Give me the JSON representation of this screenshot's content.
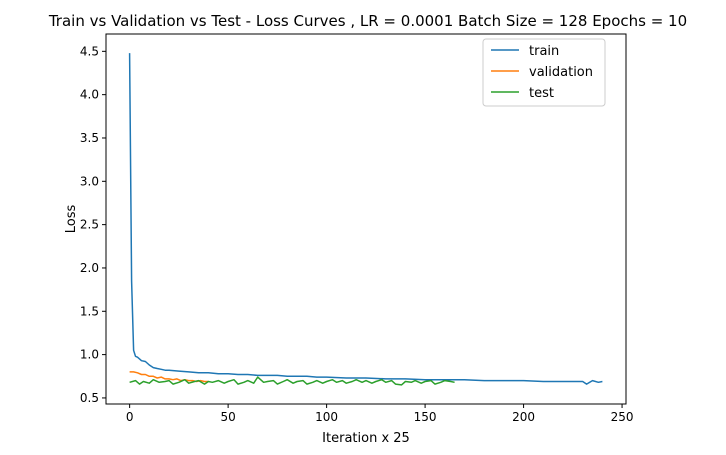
{
  "chart_data": {
    "type": "line",
    "title": "Train vs Validation vs Test - Loss Curves , LR = 0.0001 Batch Size = 128 Epochs = 10",
    "xlabel": "Iteration x 25",
    "ylabel": "Loss",
    "xlim": [
      -12,
      252
    ],
    "ylim": [
      0.43,
      4.7
    ],
    "xticks": [
      0,
      50,
      100,
      150,
      200,
      250
    ],
    "yticks": [
      0.5,
      1.0,
      1.5,
      2.0,
      2.5,
      3.0,
      3.5,
      4.0,
      4.5
    ],
    "xtick_labels": [
      "0",
      "50",
      "100",
      "150",
      "200",
      "250"
    ],
    "ytick_labels": [
      "0.5",
      "1.0",
      "1.5",
      "2.0",
      "2.5",
      "3.0",
      "3.5",
      "4.0",
      "4.5"
    ],
    "grid": false,
    "legend_position": "top-right",
    "series": [
      {
        "name": "train",
        "color": "#1f77b4",
        "x": [
          0,
          1,
          2,
          3,
          4,
          5,
          6,
          8,
          10,
          12,
          14,
          16,
          18,
          20,
          25,
          30,
          35,
          40,
          45,
          50,
          55,
          60,
          65,
          70,
          75,
          80,
          85,
          90,
          95,
          100,
          110,
          120,
          130,
          140,
          150,
          160,
          170,
          180,
          190,
          200,
          210,
          220,
          230,
          232,
          235,
          238,
          240
        ],
        "y": [
          4.48,
          1.85,
          1.05,
          0.98,
          0.97,
          0.95,
          0.93,
          0.92,
          0.88,
          0.85,
          0.84,
          0.83,
          0.82,
          0.82,
          0.81,
          0.8,
          0.79,
          0.79,
          0.78,
          0.78,
          0.77,
          0.77,
          0.76,
          0.76,
          0.76,
          0.75,
          0.75,
          0.75,
          0.74,
          0.74,
          0.73,
          0.73,
          0.72,
          0.72,
          0.71,
          0.71,
          0.71,
          0.7,
          0.7,
          0.7,
          0.69,
          0.69,
          0.69,
          0.66,
          0.7,
          0.68,
          0.69
        ]
      },
      {
        "name": "validation",
        "color": "#ff7f0e",
        "x": [
          0,
          2,
          4,
          6,
          8,
          10,
          12,
          14,
          16,
          18,
          20,
          22,
          24,
          26,
          28,
          30,
          32,
          34,
          36,
          38,
          40
        ],
        "y": [
          0.8,
          0.8,
          0.79,
          0.77,
          0.77,
          0.75,
          0.75,
          0.73,
          0.74,
          0.72,
          0.72,
          0.71,
          0.72,
          0.7,
          0.71,
          0.7,
          0.7,
          0.69,
          0.7,
          0.69,
          0.69
        ]
      },
      {
        "name": "test",
        "color": "#2ca02c",
        "x": [
          0,
          3,
          5,
          7,
          10,
          12,
          15,
          18,
          20,
          22,
          25,
          28,
          30,
          33,
          35,
          38,
          40,
          42,
          45,
          48,
          50,
          53,
          55,
          58,
          60,
          63,
          65,
          68,
          70,
          73,
          75,
          78,
          80,
          83,
          85,
          88,
          90,
          93,
          95,
          98,
          100,
          103,
          105,
          108,
          110,
          113,
          115,
          118,
          120,
          123,
          125,
          128,
          130,
          133,
          135,
          138,
          140,
          143,
          145,
          148,
          150,
          153,
          155,
          158,
          160,
          163,
          165
        ],
        "y": [
          0.68,
          0.7,
          0.66,
          0.69,
          0.67,
          0.71,
          0.68,
          0.69,
          0.7,
          0.66,
          0.68,
          0.71,
          0.67,
          0.69,
          0.7,
          0.66,
          0.69,
          0.68,
          0.7,
          0.67,
          0.69,
          0.71,
          0.66,
          0.68,
          0.7,
          0.67,
          0.74,
          0.68,
          0.69,
          0.7,
          0.66,
          0.69,
          0.71,
          0.67,
          0.69,
          0.7,
          0.66,
          0.68,
          0.7,
          0.67,
          0.69,
          0.71,
          0.68,
          0.7,
          0.67,
          0.69,
          0.71,
          0.68,
          0.7,
          0.67,
          0.69,
          0.71,
          0.68,
          0.7,
          0.66,
          0.65,
          0.69,
          0.68,
          0.7,
          0.67,
          0.69,
          0.7,
          0.66,
          0.68,
          0.7,
          0.69,
          0.68
        ]
      }
    ]
  }
}
